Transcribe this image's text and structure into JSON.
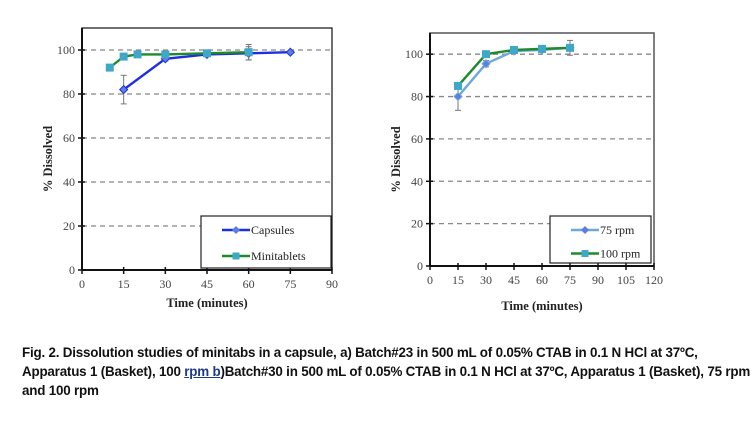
{
  "chart_data": [
    {
      "type": "line",
      "panel": "a",
      "title": "",
      "xlabel": "Time (minutes)",
      "ylabel": "% Dissolved",
      "xlim": [
        0,
        90
      ],
      "ylim": [
        0,
        110
      ],
      "xticks": [
        0,
        15,
        30,
        45,
        60,
        75,
        90
      ],
      "yticks": [
        0,
        20,
        40,
        60,
        80,
        100
      ],
      "grid": "horizontal-dashed",
      "legend_position": "bottom-right",
      "series": [
        {
          "name": "Capsules",
          "color": "#1f2fe0",
          "marker": "diamond",
          "x": [
            15,
            30,
            45,
            60,
            75
          ],
          "y": [
            82,
            96,
            98,
            98.5,
            99
          ],
          "err": [
            6.5,
            1,
            0.5,
            3,
            0.5
          ]
        },
        {
          "name": "Minitablets",
          "color": "#1e8a2a",
          "marker_color": "#3fa7c8",
          "marker": "square",
          "x": [
            10,
            15,
            20,
            30,
            45,
            60
          ],
          "y": [
            92,
            97,
            98,
            98,
            98.5,
            99
          ],
          "err": [
            0,
            1,
            0.5,
            1,
            0.5,
            3.5
          ]
        }
      ]
    },
    {
      "type": "line",
      "panel": "b",
      "title": "",
      "xlabel": "Time (minutes)",
      "ylabel": "% Dissolved",
      "xlim": [
        0,
        120
      ],
      "ylim": [
        0,
        110
      ],
      "xticks": [
        0,
        15,
        30,
        45,
        60,
        75,
        90,
        105,
        120
      ],
      "yticks": [
        0,
        20,
        40,
        60,
        80,
        100
      ],
      "grid": "horizontal-dashed",
      "legend_position": "bottom-right",
      "series": [
        {
          "name": "75 rpm",
          "color": "#6fa8dc",
          "marker_color": "#5b7fe0",
          "marker": "diamond",
          "x": [
            15,
            30,
            45,
            60,
            75
          ],
          "y": [
            80,
            95.5,
            101.5,
            102,
            103
          ],
          "err": [
            6.5,
            1.5,
            0.5,
            1,
            3.5
          ]
        },
        {
          "name": "100 rpm",
          "color": "#1e8a2a",
          "marker_color": "#3fa7c8",
          "marker": "square",
          "x": [
            15,
            30,
            45,
            60,
            75
          ],
          "y": [
            85,
            100,
            102,
            102.5,
            103
          ],
          "err": [
            1,
            1,
            0.5,
            1.5,
            1
          ]
        }
      ]
    }
  ],
  "caption": {
    "part1": "Fig. 2. Dissolution studies of minitabs in a capsule, a) Batch#23 in 500 mL of 0.05% CTAB in 0.1 N HCl at 37ºC, Apparatus 1 (Basket), 100 ",
    "link": "rpm  b",
    "part2": ")Batch#30 in 500 mL of 0.05% CTAB in 0.1 N HCl at 37ºC, Apparatus 1 (Basket), 75 rpm and 100 rpm"
  }
}
